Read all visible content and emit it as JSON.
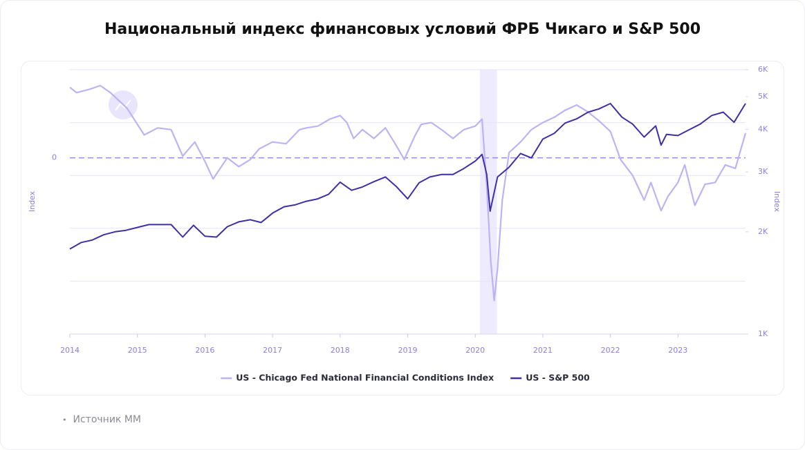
{
  "chart_data": {
    "type": "line",
    "title": "Национальный индекс финансовых условий ФРБ Чикаго и S&P 500",
    "y_label": "Index",
    "y2_label": "Index",
    "xlim": [
      2014,
      2024
    ],
    "xticks": [
      2014,
      2015,
      2016,
      2017,
      2018,
      2019,
      2020,
      2021,
      2022,
      2023
    ],
    "ylim": [
      -0.5,
      1.0
    ],
    "y_inverted": true,
    "yticks": [
      {
        "value": -0.5,
        "label": null
      },
      {
        "value": -0.2,
        "label": null
      },
      0,
      {
        "value": 0.1,
        "label": null
      },
      {
        "value": 0.4,
        "label": null
      },
      {
        "value": 0.7,
        "label": null
      },
      {
        "value": 1.0,
        "label": null
      }
    ],
    "y2lim": [
      1000,
      6000
    ],
    "y2_log": true,
    "y2ticks": [
      {
        "value": 1000,
        "label": "1K"
      },
      {
        "value": 2000,
        "label": "2K"
      },
      {
        "value": 3000,
        "label": "3K"
      },
      {
        "value": 4000,
        "label": "4K"
      },
      {
        "value": 5000,
        "label": "5K"
      },
      {
        "value": 6000,
        "label": "6K"
      }
    ],
    "grid": true,
    "legend": "bottom",
    "shaded_range": [
      2020.07,
      2020.32
    ],
    "shaded_color": "#eeebff",
    "series": [
      {
        "name": "US - Chicago Fed National Financial Conditions Index",
        "color": "#bdb2f7",
        "x": [
          2014.0,
          2014.1,
          2014.3,
          2014.45,
          2014.6,
          2014.85,
          2015.0,
          2015.1,
          2015.3,
          2015.5,
          2015.67,
          2015.85,
          2016.0,
          2016.12,
          2016.33,
          2016.5,
          2016.67,
          2016.8,
          2017.0,
          2017.2,
          2017.4,
          2017.5,
          2017.67,
          2017.85,
          2018.0,
          2018.1,
          2018.2,
          2018.33,
          2018.5,
          2018.67,
          2018.83,
          2018.95,
          2019.1,
          2019.2,
          2019.35,
          2019.5,
          2019.67,
          2019.83,
          2020.0,
          2020.1,
          2020.17,
          2020.23,
          2020.28,
          2020.33,
          2020.4,
          2020.5,
          2020.67,
          2020.83,
          2021.0,
          2021.17,
          2021.33,
          2021.5,
          2021.67,
          2021.83,
          2022.0,
          2022.15,
          2022.33,
          2022.5,
          2022.6,
          2022.75,
          2022.85,
          2023.0,
          2023.1,
          2023.25,
          2023.4,
          2023.55,
          2023.7,
          2023.85,
          2024.0
        ],
        "values": [
          -0.4,
          -0.37,
          -0.39,
          -0.41,
          -0.37,
          -0.28,
          -0.19,
          -0.13,
          -0.17,
          -0.16,
          -0.01,
          -0.09,
          0.02,
          0.12,
          0,
          0.05,
          0.01,
          -0.05,
          -0.09,
          -0.08,
          -0.16,
          -0.17,
          -0.18,
          -0.22,
          -0.24,
          -0.2,
          -0.11,
          -0.16,
          -0.11,
          -0.17,
          -0.07,
          0.01,
          -0.12,
          -0.19,
          -0.2,
          -0.16,
          -0.11,
          -0.16,
          -0.18,
          -0.22,
          0.16,
          0.59,
          0.81,
          0.63,
          0.24,
          -0.03,
          -0.09,
          -0.16,
          -0.2,
          -0.23,
          -0.27,
          -0.3,
          -0.26,
          -0.21,
          -0.15,
          0.01,
          0.1,
          0.24,
          0.14,
          0.3,
          0.22,
          0.14,
          0.04,
          0.27,
          0.15,
          0.14,
          0.04,
          0.06,
          -0.14
        ]
      },
      {
        "name": "US - S&P 500",
        "color": "#3d2fa6",
        "axis": "y2",
        "x": [
          2014.0,
          2014.17,
          2014.33,
          2014.5,
          2014.67,
          2014.83,
          2015.0,
          2015.17,
          2015.33,
          2015.5,
          2015.67,
          2015.83,
          2016.0,
          2016.17,
          2016.33,
          2016.5,
          2016.67,
          2016.83,
          2017.0,
          2017.17,
          2017.33,
          2017.5,
          2017.67,
          2017.83,
          2018.0,
          2018.17,
          2018.33,
          2018.5,
          2018.67,
          2018.83,
          2019.0,
          2019.17,
          2019.33,
          2019.5,
          2019.67,
          2019.83,
          2020.0,
          2020.1,
          2020.17,
          2020.22,
          2020.33,
          2020.5,
          2020.67,
          2020.83,
          2021.0,
          2021.17,
          2021.33,
          2021.5,
          2021.67,
          2021.83,
          2022.0,
          2022.17,
          2022.33,
          2022.5,
          2022.67,
          2022.75,
          2022.83,
          2023.0,
          2023.17,
          2023.33,
          2023.5,
          2023.67,
          2023.83,
          2024.0
        ],
        "values": [
          1780,
          1860,
          1890,
          1960,
          2000,
          2020,
          2060,
          2100,
          2100,
          2100,
          1930,
          2090,
          1940,
          1930,
          2070,
          2140,
          2170,
          2130,
          2270,
          2370,
          2400,
          2460,
          2500,
          2580,
          2800,
          2650,
          2710,
          2810,
          2900,
          2720,
          2500,
          2790,
          2900,
          2950,
          2950,
          3070,
          3230,
          3380,
          2950,
          2300,
          2900,
          3100,
          3400,
          3300,
          3750,
          3900,
          4180,
          4300,
          4500,
          4600,
          4770,
          4350,
          4150,
          3800,
          4100,
          3600,
          3870,
          3840,
          4000,
          4150,
          4400,
          4500,
          4200,
          4770
        ]
      }
    ]
  },
  "footer": {
    "source": "Источник MM"
  }
}
